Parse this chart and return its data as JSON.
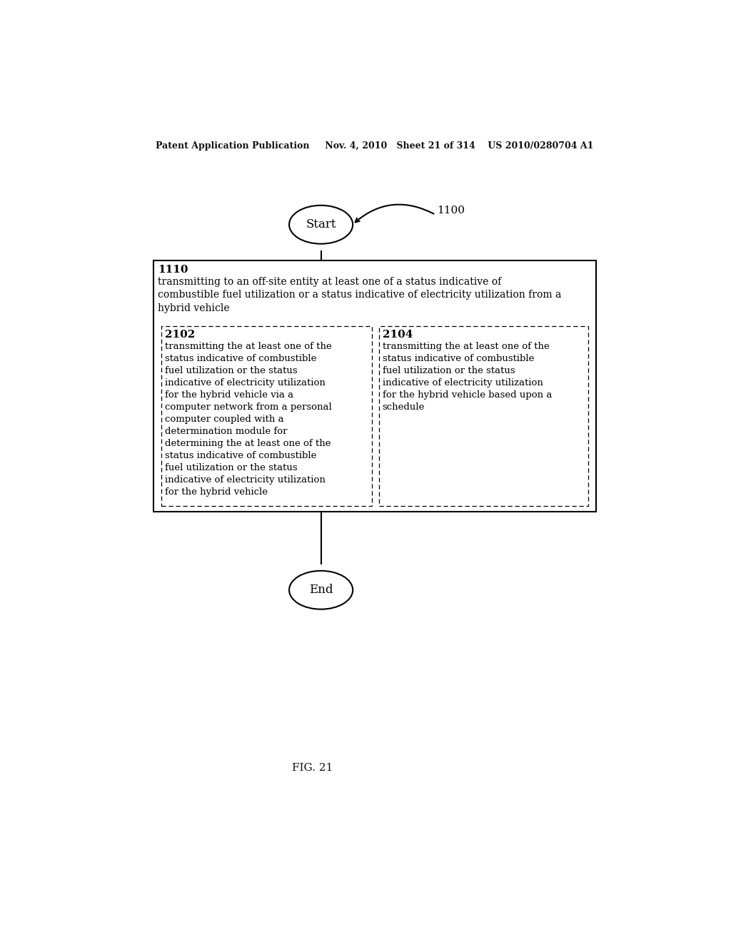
{
  "bg_color": "#ffffff",
  "header_text": "Patent Application Publication     Nov. 4, 2010   Sheet 21 of 314    US 2010/0280704 A1",
  "fig_label": "FIG. 21",
  "label_1100": "1100",
  "start_label": "Start",
  "end_label": "End",
  "box_1110_id": "1110",
  "box_1110_text": "transmitting to an off-site entity at least one of a status indicative of\ncombustible fuel utilization or a status indicative of electricity utilization from a\nhybrid vehicle",
  "box_2102_id": "2102",
  "box_2102_text": "transmitting the at least one of the\nstatus indicative of combustible\nfuel utilization or the status\nindicative of electricity utilization\nfor the hybrid vehicle via a\ncomputer network from a personal\ncomputer coupled with a\ndetermination module for\ndetermining the at least one of the\nstatus indicative of combustible\nfuel utilization or the status\nindicative of electricity utilization\nfor the hybrid vehicle",
  "box_2104_id": "2104",
  "box_2104_text": "transmitting the at least one of the\nstatus indicative of combustible\nfuel utilization or the status\nindicative of electricity utilization\nfor the hybrid vehicle based upon a\nschedule"
}
